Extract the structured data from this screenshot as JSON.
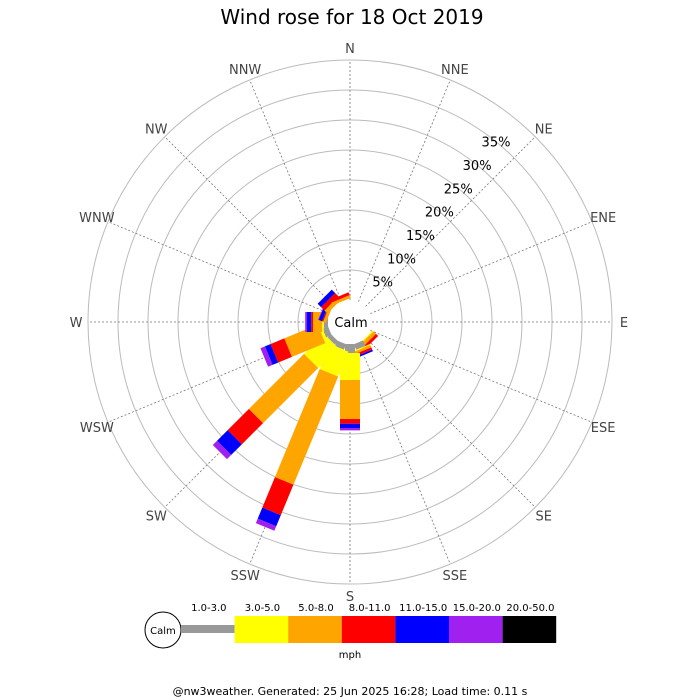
{
  "title": "Wind rose for 18 Oct 2019",
  "footer": "@nw3weather. Generated: 25 Jun 2025 16:28; Load time: 0.11 s",
  "calm_label": "Calm",
  "legend": {
    "unit": "mph",
    "calm_label": "Calm",
    "bins": [
      {
        "label": "1.0-3.0",
        "color": "#999999"
      },
      {
        "label": "3.0-5.0",
        "color": "#ffff00"
      },
      {
        "label": "5.0-8.0",
        "color": "#ffa500"
      },
      {
        "label": "8.0-11.0",
        "color": "#ff0000"
      },
      {
        "label": "11.0-15.0",
        "color": "#0000ff"
      },
      {
        "label": "15.0-20.0",
        "color": "#a020f0"
      },
      {
        "label": "20.0-50.0",
        "color": "#000000"
      }
    ]
  },
  "chart_data": {
    "type": "wind-rose",
    "title": "Wind rose for 18 Oct 2019",
    "unit": "mph",
    "directions": [
      "N",
      "NNE",
      "NE",
      "ENE",
      "E",
      "ESE",
      "SE",
      "SSE",
      "S",
      "SSW",
      "SW",
      "WSW",
      "W",
      "WNW",
      "NW",
      "NNW"
    ],
    "ring_labels": [
      "5%",
      "10%",
      "15%",
      "20%",
      "25%",
      "30%",
      "35%"
    ],
    "rlim": [
      0,
      40
    ],
    "speed_bins": [
      "1.0-3.0",
      "3.0-5.0",
      "5.0-8.0",
      "8.0-11.0",
      "11.0-15.0",
      "15.0-20.0",
      "20.0-50.0"
    ],
    "cumulative_percent": {
      "N": [
        0,
        0,
        0,
        0,
        0,
        0,
        0
      ],
      "NNE": [
        0,
        0,
        0,
        0,
        0,
        0,
        0
      ],
      "NE": [
        0,
        0,
        0,
        0,
        0,
        0,
        0
      ],
      "ENE": [
        0,
        0,
        0,
        0,
        0,
        0,
        0
      ],
      "E": [
        0,
        0,
        0,
        0,
        0,
        0,
        0
      ],
      "ESE": [
        0,
        0,
        0,
        0,
        0,
        0,
        0
      ],
      "SE": [
        0,
        0.2,
        0.8,
        1.3,
        0,
        0,
        0
      ],
      "SSE": [
        1.0,
        1.2,
        1.6,
        2.0,
        2.3,
        0,
        0
      ],
      "S": [
        1.5,
        6.0,
        12.5,
        13.3,
        14.0,
        14.4,
        0
      ],
      "SSW": [
        1.0,
        5.5,
        25.0,
        30.5,
        32.5,
        33.3,
        0
      ],
      "SW": [
        0.8,
        5.5,
        18.5,
        23.5,
        26.0,
        27.0,
        0
      ],
      "WSW": [
        1.0,
        1.5,
        7.5,
        10.0,
        11.0,
        11.8,
        0
      ],
      "W": [
        0.7,
        1.0,
        2.5,
        2.8,
        3.5,
        3.8,
        0
      ],
      "WNW": [
        0,
        0,
        0.5,
        0.7,
        1.3,
        1.4,
        0
      ],
      "NW": [
        0,
        0,
        0.7,
        1.5,
        2.3,
        0,
        0
      ],
      "NNW": [
        0,
        0,
        0.5,
        1.0,
        0,
        0,
        0
      ]
    }
  }
}
